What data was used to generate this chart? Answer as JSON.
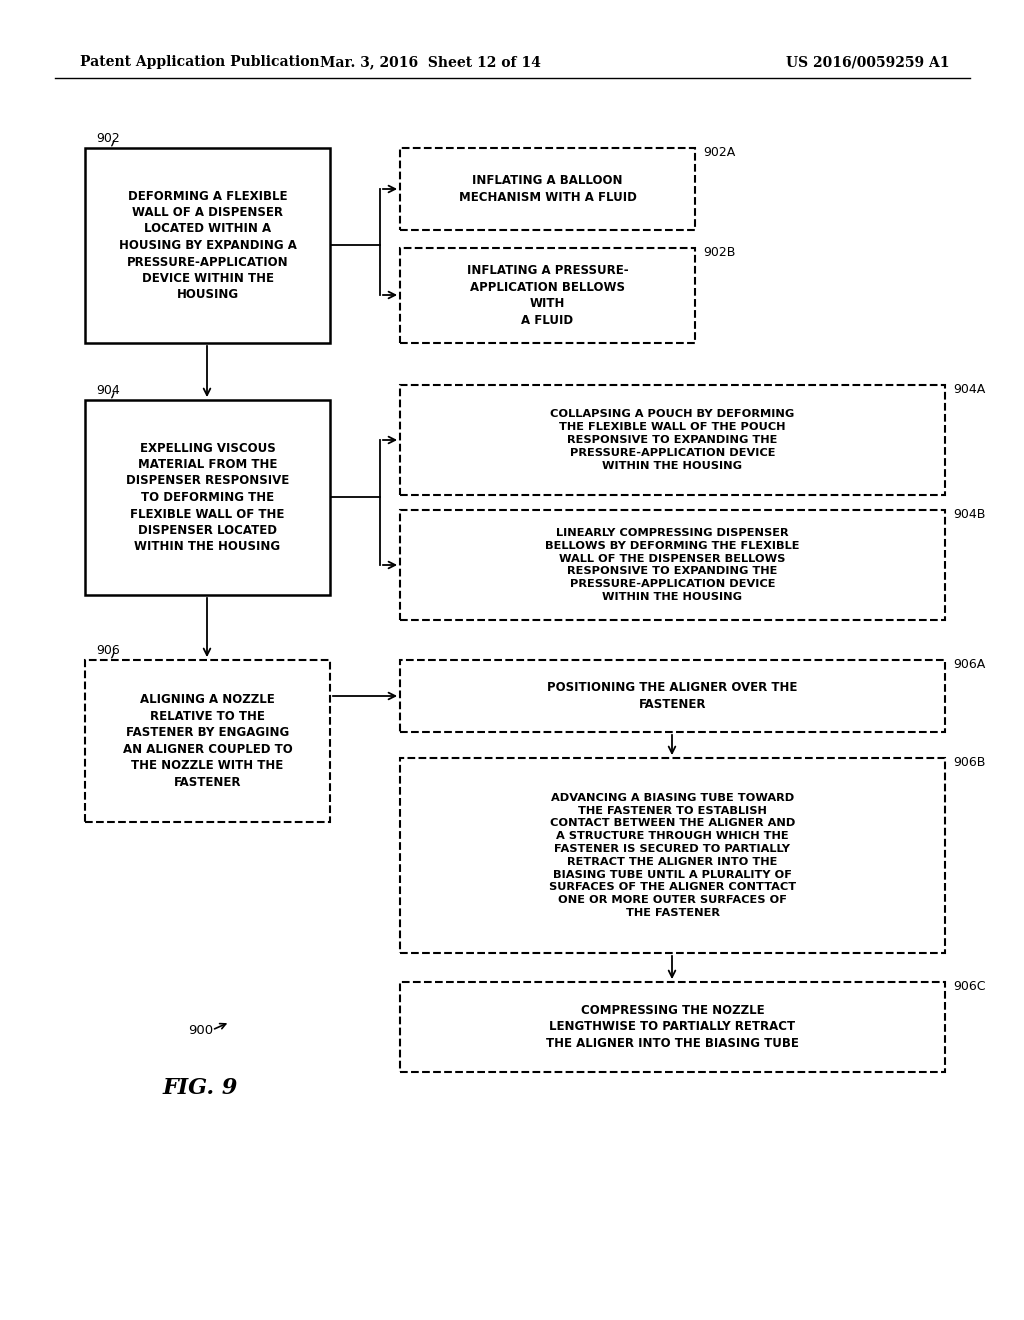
{
  "bg_color": "#ffffff",
  "header_left": "Patent Application Publication",
  "header_mid": "Mar. 3, 2016  Sheet 12 of 14",
  "header_right": "US 2016/0059259 A1",
  "fig_label": "FIG. 9",
  "fig_number": "900"
}
